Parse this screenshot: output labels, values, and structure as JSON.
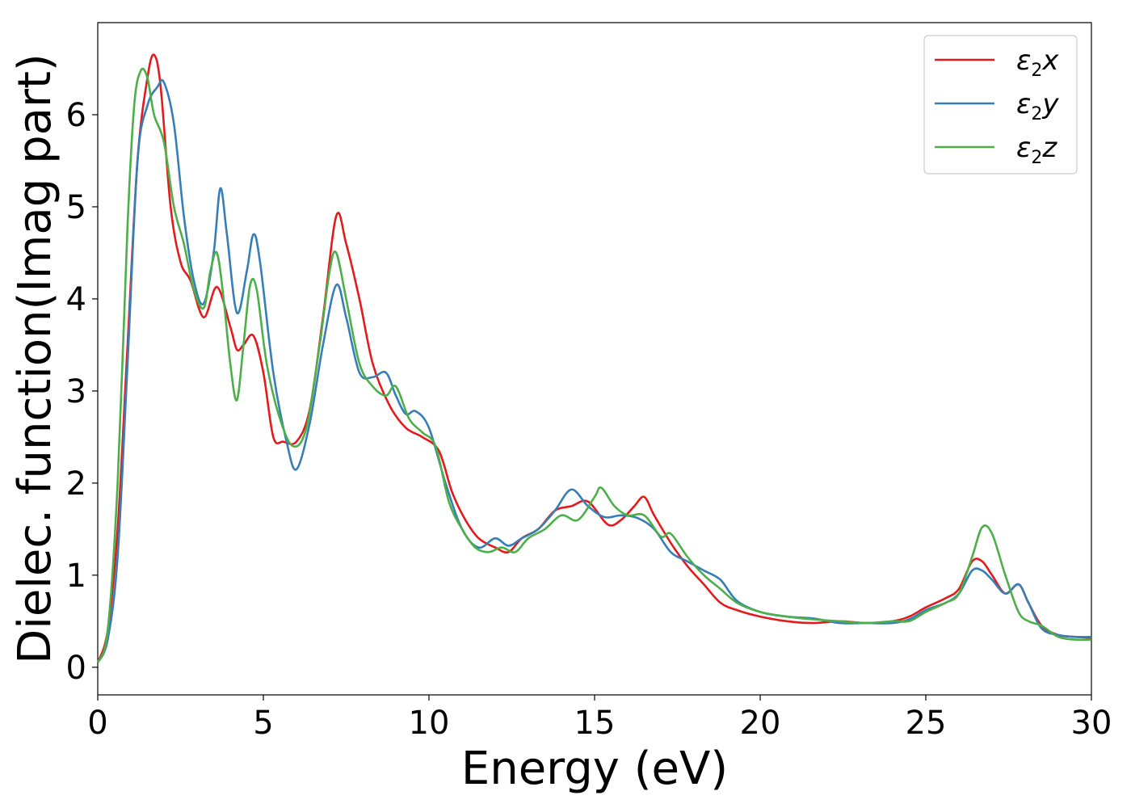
{
  "chart_data": {
    "type": "line",
    "xlabel": "Energy (eV)",
    "ylabel": "Dielec. function(Imag part)",
    "xlim": [
      0,
      30
    ],
    "ylim": [
      -0.3,
      7.0
    ],
    "xticks": [
      0,
      5,
      10,
      15,
      20,
      25,
      30
    ],
    "yticks": [
      0,
      1,
      2,
      3,
      4,
      5,
      6
    ],
    "grid": false,
    "legend_position": "top-right",
    "series": [
      {
        "name": "ε2x",
        "legend_base": "ε",
        "legend_sub": "2",
        "legend_var": "x",
        "color": "#e41a1c",
        "x": [
          0,
          0.3,
          0.6,
          0.9,
          1.2,
          1.5,
          1.7,
          1.9,
          2.2,
          2.5,
          2.8,
          3.2,
          3.6,
          4.0,
          4.2,
          4.4,
          4.7,
          5.0,
          5.3,
          5.6,
          6.0,
          6.4,
          6.8,
          7.2,
          7.5,
          7.9,
          8.3,
          8.8,
          9.3,
          9.8,
          10.3,
          10.7,
          11.1,
          11.5,
          12.0,
          12.4,
          12.8,
          13.3,
          13.8,
          14.3,
          14.8,
          15.4,
          15.8,
          16.2,
          16.5,
          16.8,
          17.3,
          17.8,
          18.3,
          18.8,
          19.3,
          20.0,
          20.8,
          21.6,
          22.4,
          23.2,
          24.0,
          24.5,
          25.0,
          25.6,
          26.0,
          26.4,
          26.7,
          27.0,
          27.4,
          27.8,
          28.1,
          28.5,
          29.0,
          29.5,
          30.0
        ],
        "y": [
          0.05,
          0.4,
          1.5,
          3.5,
          5.5,
          6.4,
          6.65,
          6.3,
          5.0,
          4.4,
          4.2,
          3.8,
          4.13,
          3.7,
          3.45,
          3.5,
          3.6,
          3.2,
          2.5,
          2.45,
          2.45,
          2.8,
          3.8,
          4.9,
          4.6,
          4.0,
          3.3,
          2.85,
          2.6,
          2.5,
          2.35,
          1.9,
          1.6,
          1.4,
          1.3,
          1.25,
          1.4,
          1.5,
          1.7,
          1.75,
          1.8,
          1.55,
          1.6,
          1.75,
          1.85,
          1.65,
          1.35,
          1.1,
          0.9,
          0.7,
          0.62,
          0.55,
          0.5,
          0.48,
          0.5,
          0.48,
          0.5,
          0.55,
          0.65,
          0.75,
          0.85,
          1.15,
          1.15,
          1.0,
          0.8,
          0.9,
          0.7,
          0.45,
          0.35,
          0.33,
          0.32
        ]
      },
      {
        "name": "ε2y",
        "legend_base": "ε",
        "legend_sub": "2",
        "legend_var": "y",
        "color": "#377eb8",
        "x": [
          0,
          0.3,
          0.6,
          0.9,
          1.2,
          1.5,
          1.8,
          2.0,
          2.3,
          2.6,
          2.9,
          3.2,
          3.5,
          3.7,
          3.9,
          4.2,
          4.5,
          4.7,
          4.9,
          5.3,
          5.7,
          6.0,
          6.4,
          6.8,
          7.2,
          7.5,
          7.9,
          8.3,
          8.7,
          9.0,
          9.3,
          9.6,
          10.0,
          10.5,
          11.0,
          11.5,
          12.0,
          12.4,
          12.8,
          13.3,
          13.8,
          14.3,
          14.8,
          15.3,
          15.8,
          16.3,
          16.8,
          17.3,
          17.8,
          18.3,
          18.8,
          19.3,
          20.0,
          20.8,
          21.6,
          22.4,
          23.2,
          24.0,
          24.5,
          25.0,
          25.6,
          26.0,
          26.4,
          26.7,
          27.0,
          27.4,
          27.8,
          28.1,
          28.5,
          29.0,
          29.5,
          30.0
        ],
        "y": [
          0.05,
          0.3,
          1.2,
          3.3,
          5.5,
          6.1,
          6.3,
          6.35,
          5.9,
          4.9,
          4.2,
          3.95,
          4.5,
          5.2,
          4.7,
          3.85,
          4.3,
          4.7,
          4.4,
          3.2,
          2.45,
          2.15,
          2.65,
          3.5,
          4.15,
          3.8,
          3.2,
          3.15,
          3.2,
          2.95,
          2.75,
          2.78,
          2.6,
          2.0,
          1.5,
          1.3,
          1.4,
          1.32,
          1.4,
          1.5,
          1.7,
          1.93,
          1.75,
          1.63,
          1.65,
          1.62,
          1.5,
          1.25,
          1.15,
          1.05,
          0.95,
          0.72,
          0.6,
          0.55,
          0.53,
          0.48,
          0.48,
          0.48,
          0.52,
          0.62,
          0.7,
          0.8,
          1.05,
          1.05,
          0.95,
          0.8,
          0.9,
          0.7,
          0.42,
          0.35,
          0.33,
          0.33
        ]
      },
      {
        "name": "ε2z",
        "legend_base": "ε",
        "legend_sub": "2",
        "legend_var": "z",
        "color": "#4daf4a",
        "x": [
          0,
          0.3,
          0.6,
          0.9,
          1.1,
          1.3,
          1.5,
          1.7,
          2.0,
          2.3,
          2.6,
          2.9,
          3.2,
          3.4,
          3.6,
          3.8,
          4.0,
          4.2,
          4.4,
          4.6,
          4.8,
          5.1,
          5.5,
          5.9,
          6.3,
          6.7,
          7.0,
          7.2,
          7.5,
          7.9,
          8.3,
          8.7,
          9.0,
          9.4,
          9.8,
          10.2,
          10.6,
          11.0,
          11.4,
          11.8,
          12.2,
          12.6,
          13.0,
          13.5,
          14.0,
          14.5,
          15.0,
          15.2,
          15.6,
          16.0,
          16.5,
          17.0,
          17.3,
          17.8,
          18.3,
          18.8,
          19.3,
          20.0,
          20.8,
          21.6,
          22.4,
          23.2,
          24.0,
          24.5,
          25.0,
          25.6,
          26.0,
          26.4,
          26.7,
          27.0,
          27.4,
          27.8,
          28.1,
          28.5,
          29.0,
          29.5,
          30.0
        ],
        "y": [
          0.05,
          0.4,
          2.0,
          4.8,
          6.1,
          6.48,
          6.4,
          6.0,
          5.7,
          5.0,
          4.6,
          4.1,
          3.9,
          4.3,
          4.5,
          4.0,
          3.3,
          2.9,
          3.5,
          4.15,
          4.1,
          3.3,
          2.7,
          2.4,
          2.6,
          3.5,
          4.3,
          4.5,
          4.0,
          3.3,
          3.05,
          2.95,
          3.05,
          2.7,
          2.55,
          2.4,
          1.8,
          1.5,
          1.3,
          1.25,
          1.3,
          1.25,
          1.4,
          1.5,
          1.65,
          1.6,
          1.85,
          1.95,
          1.75,
          1.65,
          1.65,
          1.42,
          1.45,
          1.2,
          1.0,
          0.85,
          0.7,
          0.6,
          0.55,
          0.52,
          0.5,
          0.48,
          0.5,
          0.5,
          0.6,
          0.7,
          0.8,
          1.2,
          1.52,
          1.45,
          1.0,
          0.6,
          0.5,
          0.45,
          0.33,
          0.3,
          0.3
        ]
      }
    ]
  }
}
